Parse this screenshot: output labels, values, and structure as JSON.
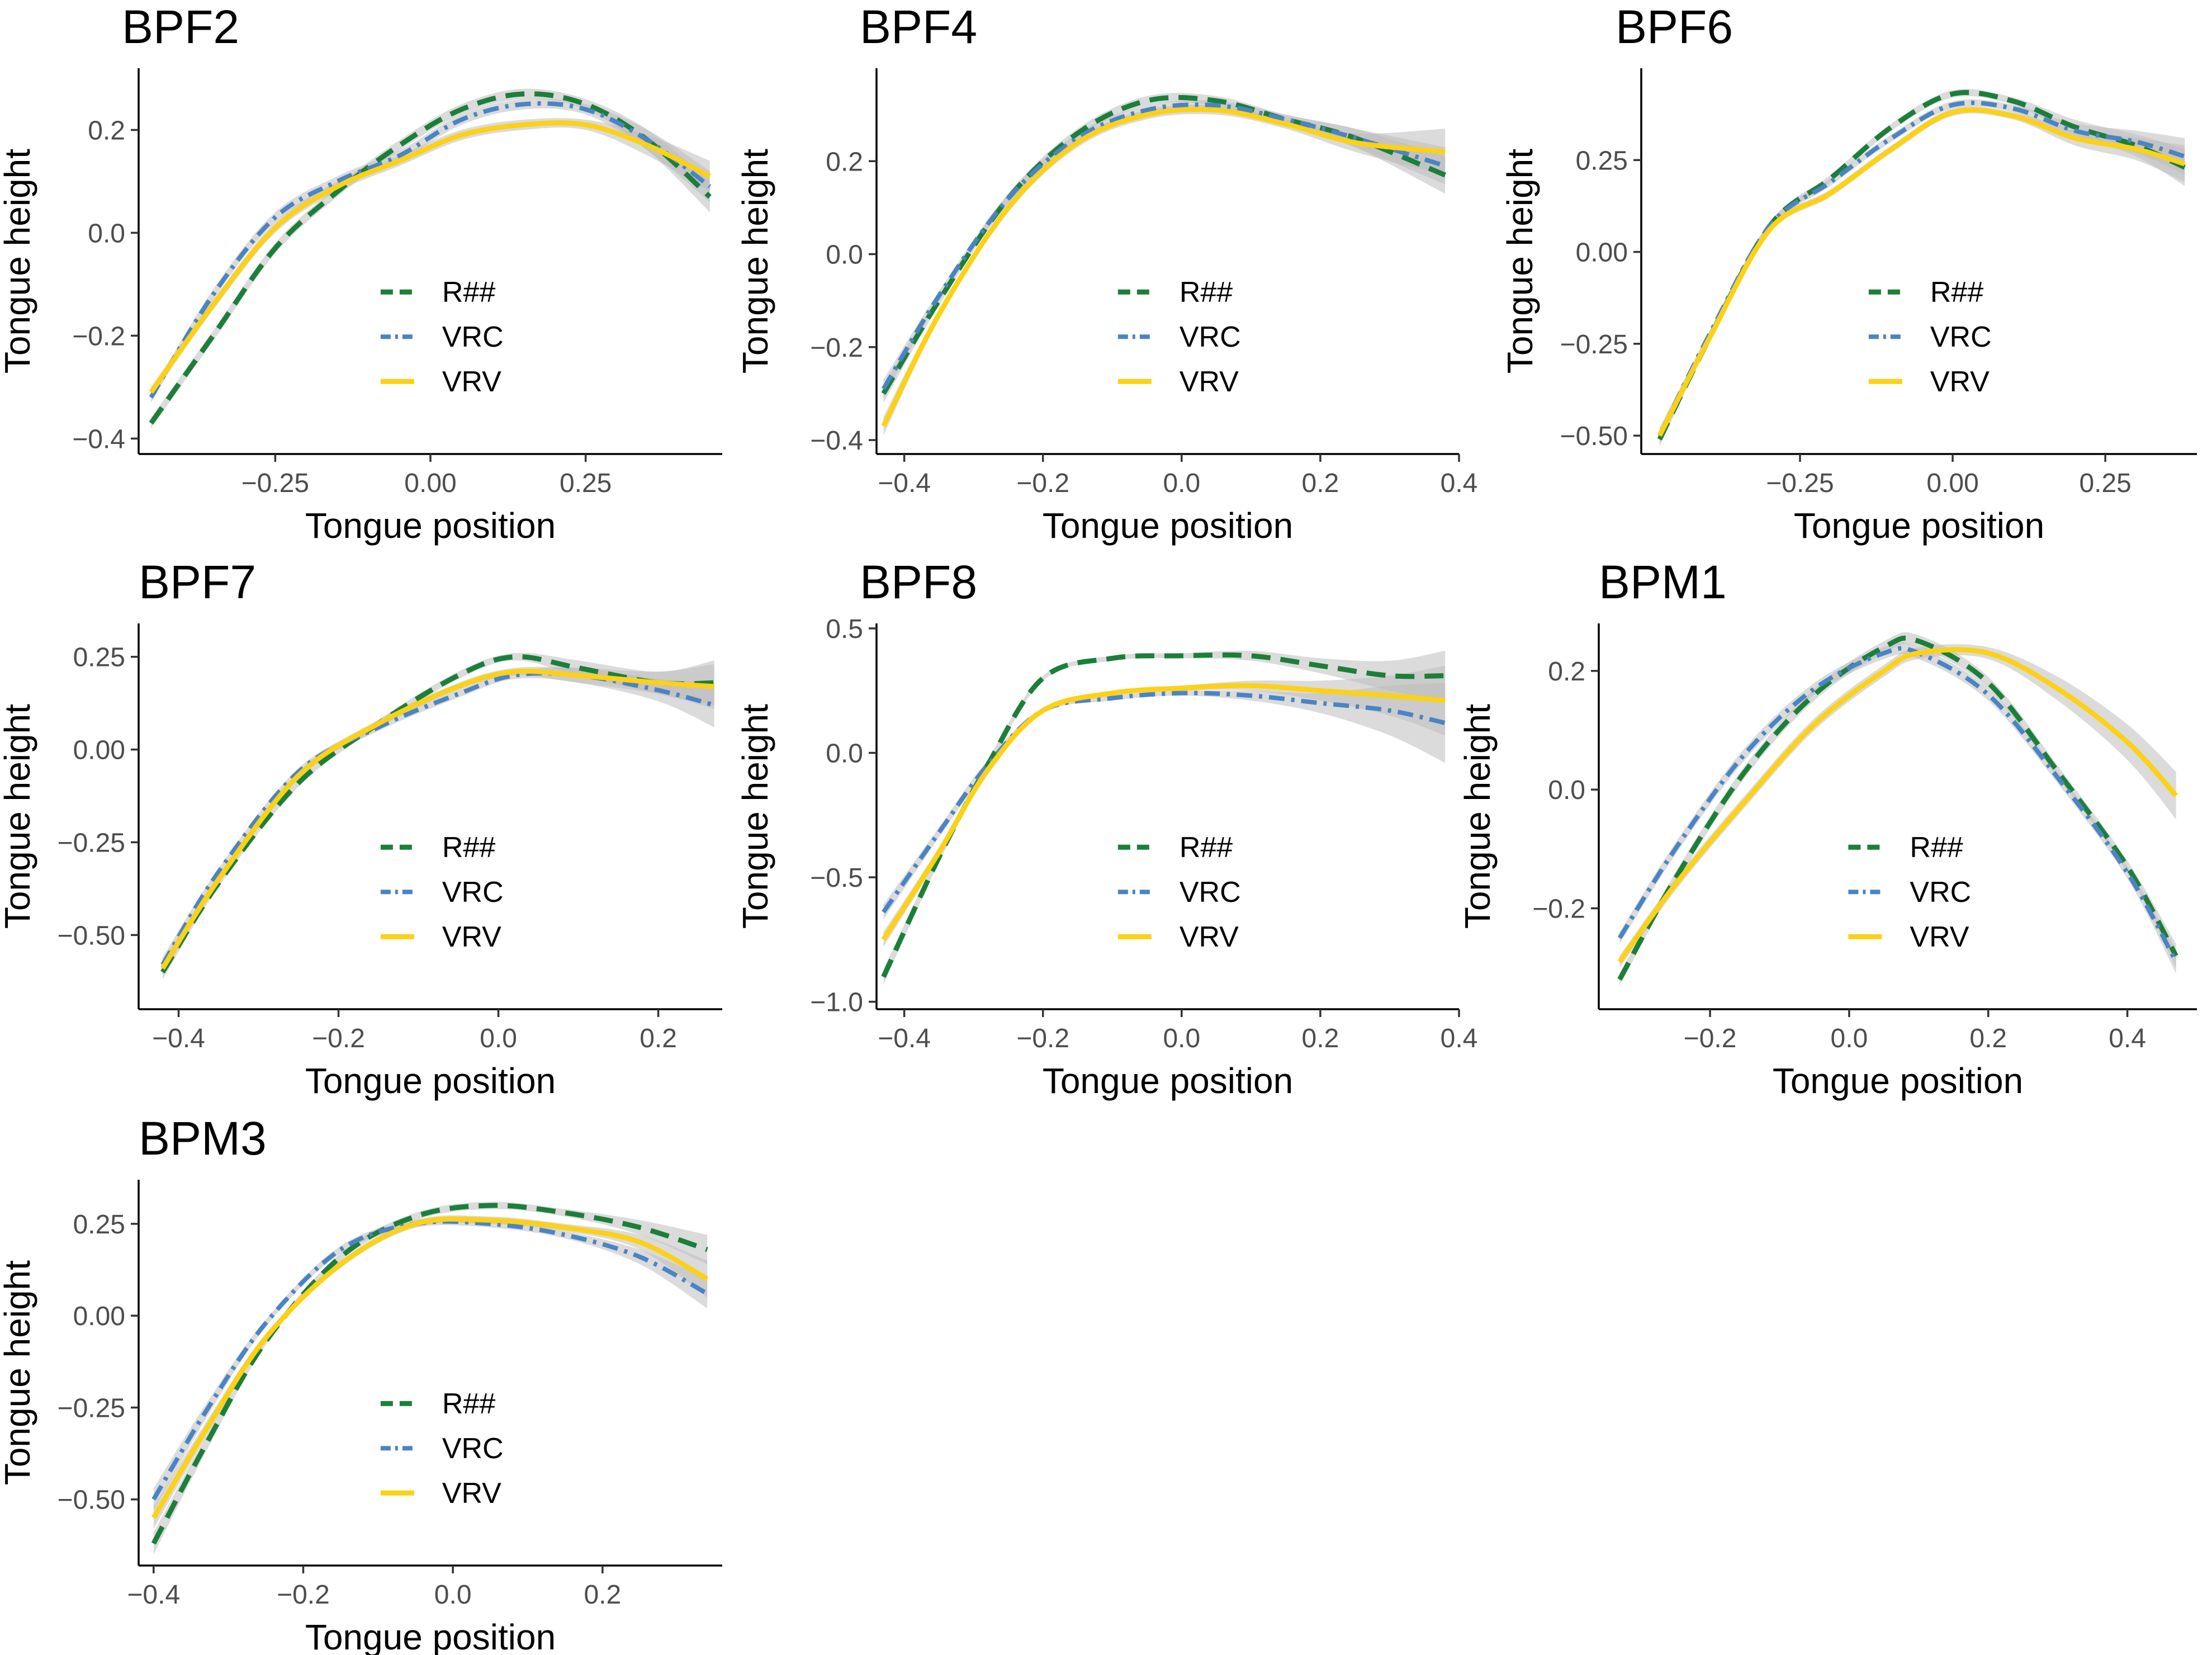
{
  "figure": {
    "legend": [
      "R##",
      "VRC",
      "VRV"
    ],
    "colors": {
      "R##": "#1b7f3a",
      "VRC": "#4a84c4",
      "VRV": "#fcd116",
      "band": "#bdbdbd"
    }
  },
  "chart_data": [
    {
      "type": "line",
      "title": "BPF2",
      "xlabel": "Tongue position",
      "ylabel": "Tongue height",
      "xlim": [
        -0.47,
        0.47
      ],
      "ylim": [
        -0.43,
        0.32
      ],
      "xticks": [
        -0.25,
        0.0,
        0.25
      ],
      "xtick_labels": [
        "−0.25",
        "0.00",
        "0.25"
      ],
      "yticks": [
        -0.4,
        -0.2,
        0.0,
        0.2
      ],
      "ytick_labels": [
        "−0.4",
        "−0.2",
        "0.0",
        "0.2"
      ],
      "legend_position": "center-bottom",
      "series": [
        {
          "name": "R##",
          "x": [
            -0.45,
            -0.35,
            -0.25,
            -0.15,
            -0.05,
            0.05,
            0.15,
            0.25,
            0.35,
            0.45
          ],
          "y": [
            -0.37,
            -0.2,
            -0.03,
            0.08,
            0.17,
            0.24,
            0.27,
            0.25,
            0.18,
            0.07
          ],
          "band": [
            0.01,
            0.01,
            0.01,
            0.01,
            0.01,
            0.01,
            0.01,
            0.01,
            0.02,
            0.03
          ]
        },
        {
          "name": "VRC",
          "x": [
            -0.45,
            -0.35,
            -0.25,
            -0.15,
            -0.05,
            0.05,
            0.15,
            0.25,
            0.35,
            0.45
          ],
          "y": [
            -0.32,
            -0.12,
            0.03,
            0.1,
            0.15,
            0.22,
            0.25,
            0.24,
            0.18,
            0.09
          ],
          "band": [
            0.01,
            0.01,
            0.01,
            0.01,
            0.01,
            0.01,
            0.01,
            0.01,
            0.02,
            0.03
          ]
        },
        {
          "name": "VRV",
          "x": [
            -0.45,
            -0.35,
            -0.25,
            -0.15,
            -0.05,
            0.05,
            0.15,
            0.25,
            0.35,
            0.45
          ],
          "y": [
            -0.31,
            -0.14,
            0.01,
            0.09,
            0.14,
            0.19,
            0.21,
            0.21,
            0.17,
            0.11
          ],
          "band": [
            0.01,
            0.01,
            0.01,
            0.01,
            0.01,
            0.01,
            0.01,
            0.01,
            0.02,
            0.03
          ]
        }
      ]
    },
    {
      "type": "line",
      "title": "BPF4",
      "xlabel": "Tongue position",
      "ylabel": "Tongue height",
      "xlim": [
        -0.44,
        0.4
      ],
      "ylim": [
        -0.43,
        0.4
      ],
      "xticks": [
        -0.4,
        -0.2,
        0.0,
        0.2,
        0.4
      ],
      "xtick_labels": [
        "−0.4",
        "−0.2",
        "0.0",
        "0.2",
        "0.4"
      ],
      "yticks": [
        -0.4,
        -0.2,
        0.0,
        0.2
      ],
      "ytick_labels": [
        "−0.4",
        "−0.2",
        "0.0",
        "0.2"
      ],
      "legend_position": "center-bottom",
      "series": [
        {
          "name": "R##",
          "x": [
            -0.43,
            -0.35,
            -0.25,
            -0.15,
            -0.05,
            0.05,
            0.15,
            0.25,
            0.38
          ],
          "y": [
            -0.3,
            -0.1,
            0.12,
            0.26,
            0.33,
            0.33,
            0.29,
            0.25,
            0.17
          ],
          "band": [
            0.02,
            0.01,
            0.01,
            0.01,
            0.01,
            0.01,
            0.01,
            0.02,
            0.04
          ]
        },
        {
          "name": "VRC",
          "x": [
            -0.43,
            -0.35,
            -0.25,
            -0.15,
            -0.05,
            0.05,
            0.15,
            0.25,
            0.38
          ],
          "y": [
            -0.29,
            -0.09,
            0.12,
            0.25,
            0.31,
            0.32,
            0.29,
            0.25,
            0.19
          ],
          "band": [
            0.02,
            0.01,
            0.01,
            0.01,
            0.01,
            0.01,
            0.01,
            0.02,
            0.04
          ]
        },
        {
          "name": "VRV",
          "x": [
            -0.43,
            -0.35,
            -0.25,
            -0.15,
            -0.05,
            0.05,
            0.15,
            0.25,
            0.38
          ],
          "y": [
            -0.37,
            -0.13,
            0.1,
            0.24,
            0.3,
            0.31,
            0.28,
            0.24,
            0.22
          ],
          "band": [
            0.02,
            0.01,
            0.01,
            0.01,
            0.01,
            0.01,
            0.01,
            0.02,
            0.05
          ]
        }
      ]
    },
    {
      "type": "line",
      "title": "BPF6",
      "xlabel": "Tongue position",
      "ylabel": "Tongue height",
      "xlim": [
        -0.51,
        0.4
      ],
      "ylim": [
        -0.55,
        0.5
      ],
      "xticks": [
        -0.25,
        0.0,
        0.25
      ],
      "xtick_labels": [
        "−0.25",
        "0.00",
        "0.25"
      ],
      "yticks": [
        -0.5,
        -0.25,
        0.0,
        0.25
      ],
      "ytick_labels": [
        "−0.50",
        "−0.25",
        "0.00",
        "0.25"
      ],
      "legend_position": "center-bottom",
      "series": [
        {
          "name": "R##",
          "x": [
            -0.48,
            -0.4,
            -0.3,
            -0.2,
            -0.1,
            0.0,
            0.1,
            0.2,
            0.3,
            0.38
          ],
          "y": [
            -0.51,
            -0.24,
            0.07,
            0.2,
            0.34,
            0.43,
            0.41,
            0.34,
            0.29,
            0.23
          ],
          "band": [
            0.02,
            0.01,
            0.01,
            0.01,
            0.01,
            0.01,
            0.01,
            0.02,
            0.03,
            0.05
          ]
        },
        {
          "name": "VRC",
          "x": [
            -0.48,
            -0.4,
            -0.3,
            -0.2,
            -0.1,
            0.0,
            0.1,
            0.2,
            0.3,
            0.38
          ],
          "y": [
            -0.5,
            -0.23,
            0.07,
            0.19,
            0.31,
            0.4,
            0.39,
            0.33,
            0.3,
            0.26
          ],
          "band": [
            0.02,
            0.01,
            0.01,
            0.01,
            0.01,
            0.01,
            0.01,
            0.02,
            0.03,
            0.05
          ]
        },
        {
          "name": "VRV",
          "x": [
            -0.48,
            -0.4,
            -0.3,
            -0.2,
            -0.1,
            0.0,
            0.1,
            0.2,
            0.3,
            0.38
          ],
          "y": [
            -0.5,
            -0.24,
            0.06,
            0.16,
            0.28,
            0.38,
            0.37,
            0.31,
            0.28,
            0.24
          ],
          "band": [
            0.02,
            0.01,
            0.01,
            0.01,
            0.01,
            0.01,
            0.01,
            0.02,
            0.03,
            0.05
          ]
        }
      ]
    },
    {
      "type": "line",
      "title": "BPF7",
      "xlabel": "Tongue position",
      "ylabel": "Tongue height",
      "xlim": [
        -0.45,
        0.28
      ],
      "ylim": [
        -0.7,
        0.34
      ],
      "xticks": [
        -0.4,
        -0.2,
        0.0,
        0.2
      ],
      "xtick_labels": [
        "−0.4",
        "−0.2",
        "0.0",
        "0.2"
      ],
      "yticks": [
        -0.5,
        -0.25,
        0.0,
        0.25
      ],
      "ytick_labels": [
        "−0.50",
        "−0.25",
        "0.00",
        "0.25"
      ],
      "legend_position": "center-bottom",
      "series": [
        {
          "name": "R##",
          "x": [
            -0.42,
            -0.35,
            -0.25,
            -0.15,
            -0.05,
            0.02,
            0.1,
            0.2,
            0.27
          ],
          "y": [
            -0.6,
            -0.36,
            -0.09,
            0.07,
            0.2,
            0.25,
            0.22,
            0.18,
            0.18
          ],
          "band": [
            0.02,
            0.01,
            0.01,
            0.01,
            0.01,
            0.01,
            0.02,
            0.03,
            0.06
          ]
        },
        {
          "name": "VRC",
          "x": [
            -0.42,
            -0.35,
            -0.25,
            -0.15,
            -0.05,
            0.02,
            0.1,
            0.2,
            0.27
          ],
          "y": [
            -0.58,
            -0.33,
            -0.06,
            0.06,
            0.15,
            0.2,
            0.2,
            0.16,
            0.12
          ],
          "band": [
            0.02,
            0.01,
            0.01,
            0.01,
            0.01,
            0.01,
            0.02,
            0.03,
            0.06
          ]
        },
        {
          "name": "VRV",
          "x": [
            -0.42,
            -0.35,
            -0.25,
            -0.15,
            -0.05,
            0.02,
            0.1,
            0.2,
            0.27
          ],
          "y": [
            -0.59,
            -0.35,
            -0.07,
            0.07,
            0.17,
            0.21,
            0.2,
            0.18,
            0.17
          ],
          "band": [
            0.02,
            0.01,
            0.01,
            0.01,
            0.01,
            0.01,
            0.02,
            0.03,
            0.06
          ]
        }
      ]
    },
    {
      "type": "line",
      "title": "BPF8",
      "xlabel": "Tongue position",
      "ylabel": "Tongue height",
      "xlim": [
        -0.44,
        0.4
      ],
      "ylim": [
        -1.03,
        0.52
      ],
      "xticks": [
        -0.4,
        -0.2,
        0.0,
        0.2,
        0.4
      ],
      "xtick_labels": [
        "−0.4",
        "−0.2",
        "0.0",
        "0.2",
        "0.4"
      ],
      "yticks": [
        -1.0,
        -0.5,
        0.0,
        0.5
      ],
      "ytick_labels": [
        "−1.0",
        "−0.5",
        "0.0",
        "0.5"
      ],
      "legend_position": "center-bottom",
      "series": [
        {
          "name": "R##",
          "x": [
            -0.43,
            -0.35,
            -0.28,
            -0.2,
            -0.1,
            0.0,
            0.1,
            0.2,
            0.3,
            0.38
          ],
          "y": [
            -0.9,
            -0.42,
            -0.05,
            0.3,
            0.38,
            0.39,
            0.39,
            0.35,
            0.31,
            0.31
          ],
          "band": [
            0.03,
            0.02,
            0.02,
            0.01,
            0.01,
            0.01,
            0.02,
            0.03,
            0.06,
            0.1
          ]
        },
        {
          "name": "VRC",
          "x": [
            -0.43,
            -0.35,
            -0.28,
            -0.2,
            -0.1,
            0.0,
            0.1,
            0.2,
            0.3,
            0.38
          ],
          "y": [
            -0.64,
            -0.32,
            -0.05,
            0.17,
            0.22,
            0.24,
            0.23,
            0.2,
            0.17,
            0.12
          ],
          "band": [
            0.03,
            0.02,
            0.02,
            0.01,
            0.01,
            0.01,
            0.02,
            0.04,
            0.1,
            0.16
          ]
        },
        {
          "name": "VRV",
          "x": [
            -0.43,
            -0.35,
            -0.28,
            -0.2,
            -0.1,
            0.0,
            0.1,
            0.2,
            0.3,
            0.38
          ],
          "y": [
            -0.75,
            -0.4,
            -0.07,
            0.17,
            0.24,
            0.26,
            0.27,
            0.25,
            0.23,
            0.21
          ],
          "band": [
            0.03,
            0.02,
            0.02,
            0.01,
            0.01,
            0.01,
            0.02,
            0.04,
            0.08,
            0.14
          ]
        }
      ]
    },
    {
      "type": "line",
      "title": "BPM1",
      "xlabel": "Tongue position",
      "ylabel": "Tongue height",
      "xlim": [
        -0.36,
        0.5
      ],
      "ylim": [
        -0.37,
        0.28
      ],
      "xticks": [
        -0.2,
        0.0,
        0.2,
        0.4
      ],
      "xtick_labels": [
        "−0.2",
        "0.0",
        "0.2",
        "0.4"
      ],
      "yticks": [
        -0.2,
        0.0,
        0.2
      ],
      "ytick_labels": [
        "−0.2",
        "0.0",
        "0.2"
      ],
      "legend_position": "center-bottom",
      "series": [
        {
          "name": "R##",
          "x": [
            -0.33,
            -0.25,
            -0.15,
            -0.05,
            0.05,
            0.1,
            0.2,
            0.3,
            0.4,
            0.47
          ],
          "y": [
            -0.32,
            -0.15,
            0.03,
            0.16,
            0.24,
            0.25,
            0.18,
            0.03,
            -0.13,
            -0.28
          ],
          "band": [
            0.01,
            0.01,
            0.01,
            0.01,
            0.01,
            0.01,
            0.01,
            0.01,
            0.01,
            0.02
          ]
        },
        {
          "name": "VRC",
          "x": [
            -0.33,
            -0.25,
            -0.15,
            -0.05,
            0.05,
            0.1,
            0.2,
            0.3,
            0.4,
            0.47
          ],
          "y": [
            -0.25,
            -0.1,
            0.06,
            0.17,
            0.23,
            0.23,
            0.16,
            0.02,
            -0.14,
            -0.29
          ],
          "band": [
            0.01,
            0.01,
            0.01,
            0.01,
            0.01,
            0.01,
            0.01,
            0.01,
            0.01,
            0.02
          ]
        },
        {
          "name": "VRV",
          "x": [
            -0.33,
            -0.25,
            -0.15,
            -0.05,
            0.05,
            0.1,
            0.2,
            0.3,
            0.4,
            0.47
          ],
          "y": [
            -0.29,
            -0.16,
            -0.02,
            0.11,
            0.2,
            0.23,
            0.23,
            0.17,
            0.08,
            -0.01
          ],
          "band": [
            0.01,
            0.01,
            0.01,
            0.01,
            0.01,
            0.01,
            0.01,
            0.02,
            0.03,
            0.04
          ]
        }
      ]
    },
    {
      "type": "line",
      "title": "BPM3",
      "xlabel": "Tongue position",
      "ylabel": "Tongue height",
      "xlim": [
        -0.42,
        0.36
      ],
      "ylim": [
        -0.68,
        0.37
      ],
      "xticks": [
        -0.4,
        -0.2,
        0.0,
        0.2
      ],
      "xtick_labels": [
        "−0.4",
        "−0.2",
        "0.0",
        "0.2"
      ],
      "yticks": [
        -0.5,
        -0.25,
        0.0,
        0.25
      ],
      "ytick_labels": [
        "−0.50",
        "−0.25",
        "0.00",
        "0.25"
      ],
      "legend_position": "center-bottom",
      "series": [
        {
          "name": "R##",
          "x": [
            -0.4,
            -0.33,
            -0.25,
            -0.15,
            -0.05,
            0.05,
            0.15,
            0.25,
            0.34
          ],
          "y": [
            -0.62,
            -0.35,
            -0.07,
            0.16,
            0.27,
            0.3,
            0.28,
            0.24,
            0.18
          ],
          "band": [
            0.03,
            0.02,
            0.01,
            0.01,
            0.01,
            0.01,
            0.01,
            0.02,
            0.04
          ]
        },
        {
          "name": "VRC",
          "x": [
            -0.4,
            -0.33,
            -0.25,
            -0.15,
            -0.05,
            0.05,
            0.15,
            0.25,
            0.34
          ],
          "y": [
            -0.5,
            -0.26,
            -0.02,
            0.18,
            0.25,
            0.25,
            0.22,
            0.16,
            0.06
          ],
          "band": [
            0.03,
            0.02,
            0.01,
            0.01,
            0.01,
            0.01,
            0.01,
            0.02,
            0.04
          ]
        },
        {
          "name": "VRV",
          "x": [
            -0.4,
            -0.33,
            -0.25,
            -0.15,
            -0.05,
            0.05,
            0.15,
            0.25,
            0.34
          ],
          "y": [
            -0.55,
            -0.31,
            -0.06,
            0.14,
            0.25,
            0.26,
            0.24,
            0.2,
            0.1
          ],
          "band": [
            0.03,
            0.02,
            0.01,
            0.01,
            0.01,
            0.01,
            0.01,
            0.02,
            0.05
          ]
        }
      ]
    }
  ]
}
